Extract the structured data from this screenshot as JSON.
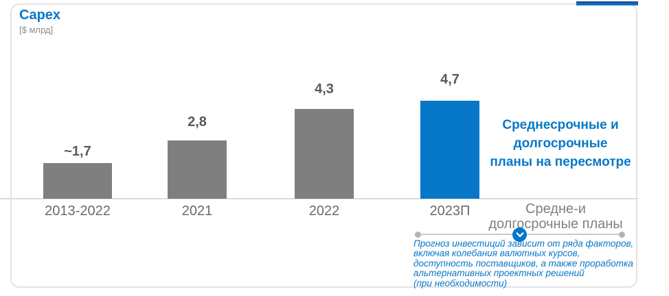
{
  "chart_data": {
    "type": "bar",
    "title": "Capex",
    "unit_label": "[$ млрд]",
    "categories": [
      "2013-2022",
      "2021",
      "2022",
      "2023П"
    ],
    "values": [
      1.7,
      2.8,
      4.3,
      4.7
    ],
    "value_labels": [
      "~1,7",
      "2,8",
      "4,3",
      "4,7"
    ],
    "bar_colors": [
      "#7f7f7f",
      "#7f7f7f",
      "#7f7f7f",
      "#0777c8"
    ],
    "highlight_index": 3,
    "ylim": [
      0,
      5
    ],
    "grid": false,
    "legend": false,
    "future_axis_label_lines": [
      "Средне-и",
      "долгосрочные планы"
    ]
  },
  "annotation": {
    "lines": [
      "Среднесрочные и",
      "долгосрочные",
      "планы на пересмотре"
    ]
  },
  "footnote": {
    "lines": [
      "Прогноз инвестиций зависит от ряда факторов,",
      "включая колебания валютных курсов,",
      "доступность поставщиков, а также проработка",
      "альтернативных проектных решений",
      "(при необходимости)"
    ]
  },
  "icons": {
    "slider_handle": "chevron-down-icon"
  },
  "colors": {
    "accent_blue": "#0777c8",
    "bar_gray": "#7f7f7f",
    "value_text": "#595959",
    "axis_text": "#696969",
    "future_label_text": "#7f7f7f",
    "baseline_gray": "#dcdcdc",
    "card_border": "#e3e3e3",
    "accent_bar_dark": "#1b4c8f",
    "accent_bar_light": "#0d74c6"
  }
}
